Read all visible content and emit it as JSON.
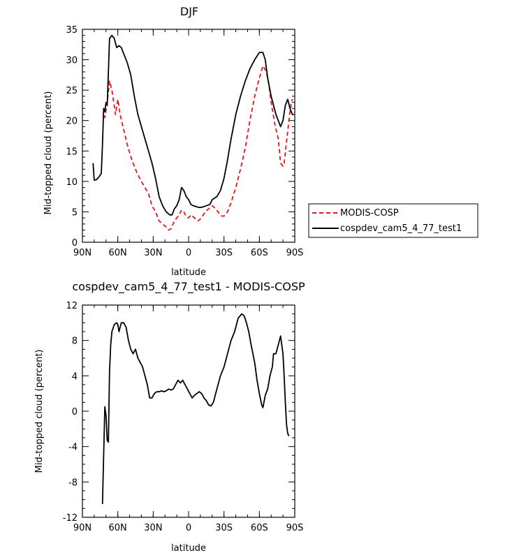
{
  "chart_data": [
    {
      "type": "line",
      "title": "DJF",
      "xlabel": "latitude",
      "ylabel": "Mid-topped cloud (percent)",
      "xlim": [
        -90,
        90
      ],
      "ylim": [
        0,
        35
      ],
      "x_ticks": [
        {
          "v": -90,
          "label": "90N"
        },
        {
          "v": -60,
          "label": "60N"
        },
        {
          "v": -30,
          "label": "30N"
        },
        {
          "v": 0,
          "label": "0"
        },
        {
          "v": 30,
          "label": "30S"
        },
        {
          "v": 60,
          "label": "60S"
        },
        {
          "v": 90,
          "label": "90S"
        }
      ],
      "y_ticks": [
        0,
        5,
        10,
        15,
        20,
        25,
        30,
        35
      ],
      "legend_position": "right",
      "series": [
        {
          "name": "MODIS-COSP",
          "color": "#e8141c",
          "dash": "dashed",
          "points": [
            [
              -72,
              22
            ],
            [
              -71,
              20.5
            ],
            [
              -69,
              23
            ],
            [
              -67,
              26.5
            ],
            [
              -65,
              25
            ],
            [
              -62,
              21
            ],
            [
              -60,
              23.5
            ],
            [
              -58,
              21
            ],
            [
              -55,
              18.5
            ],
            [
              -52,
              16
            ],
            [
              -48,
              13.5
            ],
            [
              -44,
              11.5
            ],
            [
              -40,
              10
            ],
            [
              -37,
              9
            ],
            [
              -34,
              8
            ],
            [
              -31,
              6
            ],
            [
              -28,
              5
            ],
            [
              -25,
              3.5
            ],
            [
              -22,
              3
            ],
            [
              -19,
              2.5
            ],
            [
              -17,
              2
            ],
            [
              -15,
              2.2
            ],
            [
              -12,
              3.5
            ],
            [
              -10,
              4
            ],
            [
              -8,
              4.5
            ],
            [
              -6,
              5.3
            ],
            [
              -4,
              5
            ],
            [
              -2,
              4.2
            ],
            [
              0,
              4
            ],
            [
              2,
              4.5
            ],
            [
              5,
              4
            ],
            [
              8,
              3.5
            ],
            [
              11,
              4
            ],
            [
              14,
              5
            ],
            [
              17,
              5.5
            ],
            [
              20,
              6
            ],
            [
              23,
              5.5
            ],
            [
              26,
              4.7
            ],
            [
              28,
              4.3
            ],
            [
              30,
              4.3
            ],
            [
              33,
              5
            ],
            [
              36,
              6.5
            ],
            [
              40,
              9
            ],
            [
              44,
              12
            ],
            [
              48,
              15.5
            ],
            [
              52,
              20
            ],
            [
              56,
              24
            ],
            [
              60,
              27
            ],
            [
              63,
              29
            ],
            [
              66,
              28
            ],
            [
              68,
              26
            ],
            [
              70,
              23
            ],
            [
              73,
              19.5
            ],
            [
              76,
              17
            ],
            [
              78,
              13
            ],
            [
              80,
              12.5
            ],
            [
              81,
              13
            ],
            [
              83,
              16.5
            ],
            [
              85,
              20
            ],
            [
              87,
              23
            ],
            [
              88,
              23.5
            ]
          ]
        },
        {
          "name": "cospdev_cam5_4_77_test1",
          "color": "#000000",
          "dash": "solid",
          "points": [
            [
              -81,
              13
            ],
            [
              -80,
              10.2
            ],
            [
              -78,
              10.3
            ],
            [
              -77,
              10.5
            ],
            [
              -75,
              11
            ],
            [
              -74,
              11.3
            ],
            [
              -73,
              16
            ],
            [
              -72,
              22
            ],
            [
              -71,
              21.5
            ],
            [
              -70,
              23
            ],
            [
              -69,
              22.5
            ],
            [
              -68,
              28
            ],
            [
              -67,
              33.5
            ],
            [
              -65,
              34
            ],
            [
              -63,
              33.5
            ],
            [
              -61,
              32
            ],
            [
              -59,
              32.3
            ],
            [
              -57,
              32
            ],
            [
              -55,
              31
            ],
            [
              -52,
              29.5
            ],
            [
              -49,
              27.5
            ],
            [
              -46,
              24
            ],
            [
              -43,
              21
            ],
            [
              -40,
              19
            ],
            [
              -37,
              17
            ],
            [
              -34,
              15
            ],
            [
              -31,
              13
            ],
            [
              -28,
              10.5
            ],
            [
              -25,
              7.5
            ],
            [
              -22,
              6
            ],
            [
              -19,
              5
            ],
            [
              -16,
              4.5
            ],
            [
              -14,
              4.5
            ],
            [
              -12,
              5.5
            ],
            [
              -10,
              6
            ],
            [
              -8,
              7
            ],
            [
              -6,
              9
            ],
            [
              -4,
              8.5
            ],
            [
              -2,
              7.5
            ],
            [
              0,
              7
            ],
            [
              2,
              6.2
            ],
            [
              4,
              6
            ],
            [
              6,
              5.9
            ],
            [
              9,
              5.7
            ],
            [
              12,
              5.8
            ],
            [
              15,
              6
            ],
            [
              18,
              6.2
            ],
            [
              20,
              7
            ],
            [
              24,
              7.5
            ],
            [
              27,
              8.5
            ],
            [
              30,
              10.5
            ],
            [
              33,
              13.5
            ],
            [
              36,
              17
            ],
            [
              40,
              21
            ],
            [
              44,
              24
            ],
            [
              48,
              26.5
            ],
            [
              52,
              28.5
            ],
            [
              56,
              30
            ],
            [
              60,
              31.2
            ],
            [
              63,
              31.2
            ],
            [
              65,
              30
            ],
            [
              67,
              27
            ],
            [
              70,
              24
            ],
            [
              72,
              22.5
            ],
            [
              74,
              21
            ],
            [
              76,
              20
            ],
            [
              78,
              19
            ],
            [
              80,
              20
            ],
            [
              82,
              22.5
            ],
            [
              84,
              23.5
            ],
            [
              86,
              22
            ],
            [
              88,
              21
            ],
            [
              89,
              21
            ]
          ]
        }
      ]
    },
    {
      "type": "line",
      "title": "cospdev_cam5_4_77_test1 - MODIS-COSP",
      "xlabel": "latitude",
      "ylabel": "Mid-topped cloud (percent)",
      "xlim": [
        -90,
        90
      ],
      "ylim": [
        -12,
        12
      ],
      "x_ticks": [
        {
          "v": -90,
          "label": "90N"
        },
        {
          "v": -60,
          "label": "60N"
        },
        {
          "v": -30,
          "label": "30N"
        },
        {
          "v": 0,
          "label": "0"
        },
        {
          "v": 30,
          "label": "30S"
        },
        {
          "v": 60,
          "label": "60S"
        },
        {
          "v": 90,
          "label": "90S"
        }
      ],
      "y_ticks": [
        -12,
        -8,
        -4,
        0,
        4,
        8,
        12
      ],
      "series": [
        {
          "color": "#000000",
          "dash": "solid",
          "points": [
            [
              -73,
              -10.5
            ],
            [
              -72,
              -5
            ],
            [
              -71,
              0.5
            ],
            [
              -70,
              -0.5
            ],
            [
              -69,
              -3.3
            ],
            [
              -68,
              -3.5
            ],
            [
              -67,
              4.5
            ],
            [
              -66,
              7.5
            ],
            [
              -65,
              9
            ],
            [
              -63,
              9.8
            ],
            [
              -61,
              10
            ],
            [
              -60,
              9.8
            ],
            [
              -59,
              9
            ],
            [
              -58,
              9.5
            ],
            [
              -57,
              10
            ],
            [
              -55,
              10
            ],
            [
              -53,
              9.5
            ],
            [
              -51,
              8
            ],
            [
              -49,
              7
            ],
            [
              -47,
              6.5
            ],
            [
              -45,
              7
            ],
            [
              -43,
              6
            ],
            [
              -41,
              5.5
            ],
            [
              -39,
              5
            ],
            [
              -37,
              4
            ],
            [
              -35,
              3
            ],
            [
              -33,
              1.5
            ],
            [
              -31,
              1.5
            ],
            [
              -29,
              2
            ],
            [
              -27,
              2.2
            ],
            [
              -25,
              2.2
            ],
            [
              -23,
              2.3
            ],
            [
              -21,
              2.2
            ],
            [
              -19,
              2.3
            ],
            [
              -17,
              2.5
            ],
            [
              -15,
              2.4
            ],
            [
              -13,
              2.5
            ],
            [
              -11,
              3
            ],
            [
              -9,
              3.5
            ],
            [
              -7,
              3.2
            ],
            [
              -5,
              3.5
            ],
            [
              -3,
              3
            ],
            [
              -1,
              2.5
            ],
            [
              1,
              2
            ],
            [
              3,
              1.5
            ],
            [
              5,
              1.8
            ],
            [
              7,
              2
            ],
            [
              9,
              2.2
            ],
            [
              11,
              2
            ],
            [
              13,
              1.5
            ],
            [
              15,
              1.2
            ],
            [
              17,
              0.7
            ],
            [
              19,
              0.6
            ],
            [
              21,
              1
            ],
            [
              23,
              2
            ],
            [
              25,
              3
            ],
            [
              27,
              4
            ],
            [
              30,
              5
            ],
            [
              33,
              6.5
            ],
            [
              36,
              8
            ],
            [
              39,
              9
            ],
            [
              42,
              10.5
            ],
            [
              45,
              11
            ],
            [
              47,
              10.8
            ],
            [
              49,
              10
            ],
            [
              51,
              9
            ],
            [
              53,
              7.5
            ],
            [
              56,
              5.5
            ],
            [
              58,
              3.5
            ],
            [
              60,
              2
            ],
            [
              62,
              0.7
            ],
            [
              63,
              0.4
            ],
            [
              65,
              1.8
            ],
            [
              67,
              2.5
            ],
            [
              69,
              4
            ],
            [
              71,
              5
            ],
            [
              72,
              6.5
            ],
            [
              74,
              6.5
            ],
            [
              76,
              7.5
            ],
            [
              78,
              8.5
            ],
            [
              79,
              7.5
            ],
            [
              80,
              6.5
            ],
            [
              81,
              4
            ],
            [
              82,
              1
            ],
            [
              83,
              -1.5
            ],
            [
              84,
              -2.5
            ],
            [
              85,
              -2.8
            ]
          ]
        }
      ]
    }
  ]
}
